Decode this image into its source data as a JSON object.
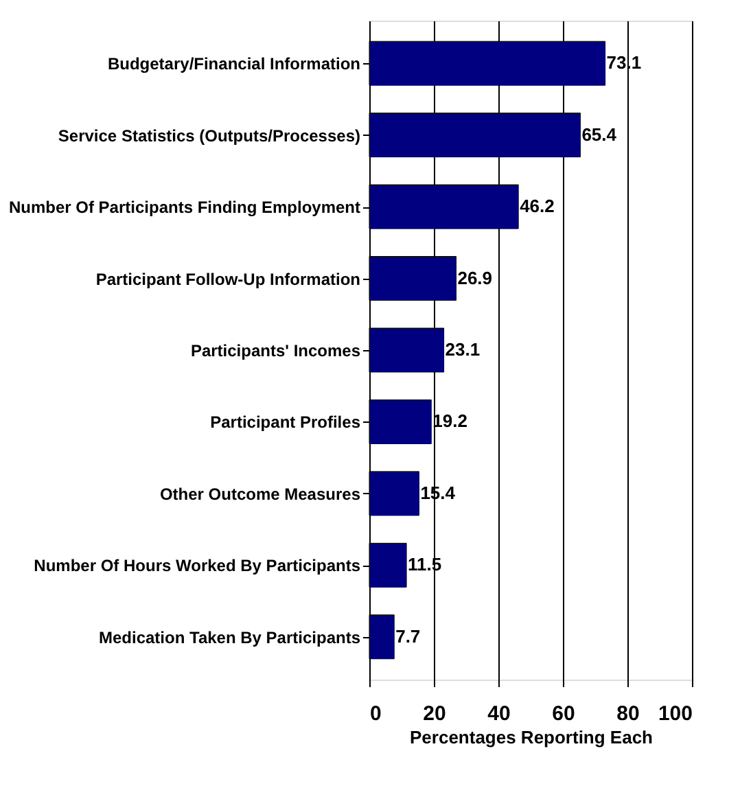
{
  "chart_data": {
    "type": "bar",
    "orientation": "horizontal",
    "xlabel": "Percentages Reporting Each",
    "categories": [
      "Budgetary/Financial Information",
      "Service Statistics (Outputs/Processes)",
      "Number Of Participants Finding Employment",
      "Participant Follow-Up Information",
      "Participants' Incomes",
      "Participant Profiles",
      "Other Outcome Measures",
      "Number Of Hours Worked By Participants",
      "Medication Taken By Participants"
    ],
    "values": [
      73.1,
      65.4,
      46.2,
      26.9,
      23.1,
      19.2,
      15.4,
      11.5,
      7.7
    ],
    "color": "#000080",
    "xlim": [
      0,
      100
    ],
    "xticks": [
      0,
      20,
      40,
      60,
      80,
      100
    ],
    "grid": "x",
    "data_labels": true
  }
}
